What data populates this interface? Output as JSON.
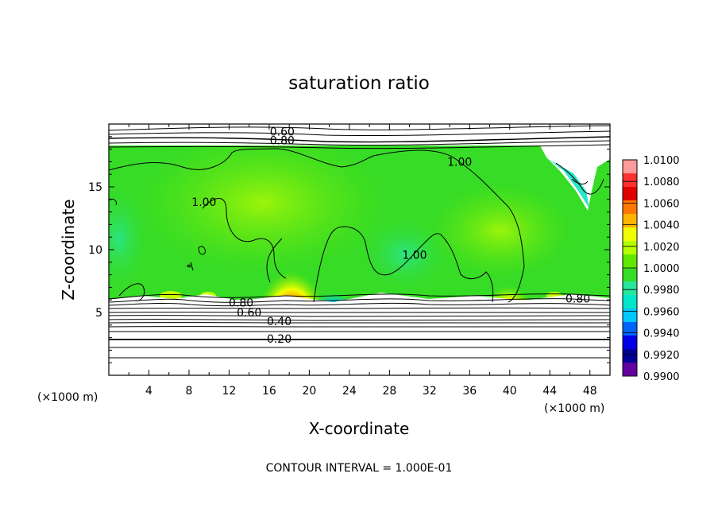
{
  "chart_data": {
    "type": "heatmap",
    "title": "saturation ratio",
    "xlabel": "X-coordinate",
    "ylabel": "Z-coordinate",
    "x_unit": "(×1000 m)",
    "z_unit": "(×1000 m)",
    "xlim": [
      0,
      50
    ],
    "ylim": [
      0,
      20
    ],
    "x_ticks": [
      4,
      8,
      12,
      16,
      20,
      24,
      28,
      32,
      36,
      40,
      44,
      48
    ],
    "y_ticks": [
      5,
      10,
      15
    ],
    "colorbar": {
      "labels": [
        "1.0100",
        "1.0080",
        "1.0060",
        "1.0040",
        "1.0020",
        "1.0000",
        "0.9980",
        "0.9960",
        "0.9940",
        "0.9920",
        "0.9900"
      ],
      "colors": [
        "#ff9a9a",
        "#ff3030",
        "#e00000",
        "#ff7800",
        "#ffb400",
        "#f0ff00",
        "#b4ff00",
        "#60e800",
        "#36dc26",
        "#28e69c",
        "#00e6c8",
        "#00c8ff",
        "#0064ff",
        "#0000e6",
        "#000096",
        "#6400a0"
      ]
    },
    "contour_labels": [
      {
        "text": "0.60",
        "x": 17.3,
        "z": 19.4
      },
      {
        "text": "0.80",
        "x": 17.3,
        "z": 18.7
      },
      {
        "text": "1.00",
        "x": 35.0,
        "z": 17.0
      },
      {
        "text": "1.00",
        "x": 9.5,
        "z": 13.8
      },
      {
        "text": "1.00",
        "x": 30.5,
        "z": 9.6
      },
      {
        "text": "0.80",
        "x": 13.2,
        "z": 5.8
      },
      {
        "text": "0.60",
        "x": 14.0,
        "z": 5.0
      },
      {
        "text": "0.40",
        "x": 17.0,
        "z": 4.3
      },
      {
        "text": "0.20",
        "x": 17.0,
        "z": 2.9
      },
      {
        "text": "0.80",
        "x": 46.8,
        "z": 6.1
      }
    ],
    "contour_interval_note": "CONTOUR INTERVAL = 1.000E-01"
  }
}
